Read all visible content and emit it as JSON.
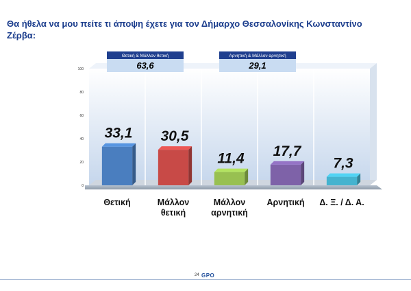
{
  "title_line1": "Θα ήθελα να μου πείτε τι άποψη έχετε για τον Δήμαρχο Θεσσαλονίκης Κωνσταντίνο",
  "title_line2": "Ζέρβα:",
  "footer": {
    "page_number": "24",
    "logo_text": "GPO"
  },
  "colors": {
    "title": "#1a3c8c",
    "summary_box": "#c9dcf2",
    "bars": [
      "#4a7ebf",
      "#c84a47",
      "#98c051",
      "#7e62a8",
      "#45b3cf"
    ]
  },
  "chart_data": {
    "type": "bar",
    "categories": [
      "Θετική",
      "Μάλλον θετική",
      "Μάλλον αρνητική",
      "Αρνητική",
      "Δ. Ξ. / Δ. Α."
    ],
    "category_lines": [
      [
        "Θετική"
      ],
      [
        "Μάλλον",
        "θετική"
      ],
      [
        "Μάλλον",
        "αρνητική"
      ],
      [
        "Αρνητική"
      ],
      [
        "Δ. Ξ. / Δ. Α."
      ]
    ],
    "values": [
      33.1,
      30.5,
      11.4,
      17.7,
      7.3
    ],
    "value_labels": [
      "33,1",
      "30,5",
      "11,4",
      "17,7",
      "7,3"
    ],
    "yticks": [
      0,
      20,
      40,
      60,
      80,
      100
    ],
    "ylim": [
      0,
      100
    ],
    "grid": false,
    "summaries": [
      {
        "label": "Θετική & Μάλλον θετική",
        "value": "63,6"
      },
      {
        "label": "Αρνητική & Μάλλον αρνητική",
        "value": "29,1"
      }
    ]
  }
}
